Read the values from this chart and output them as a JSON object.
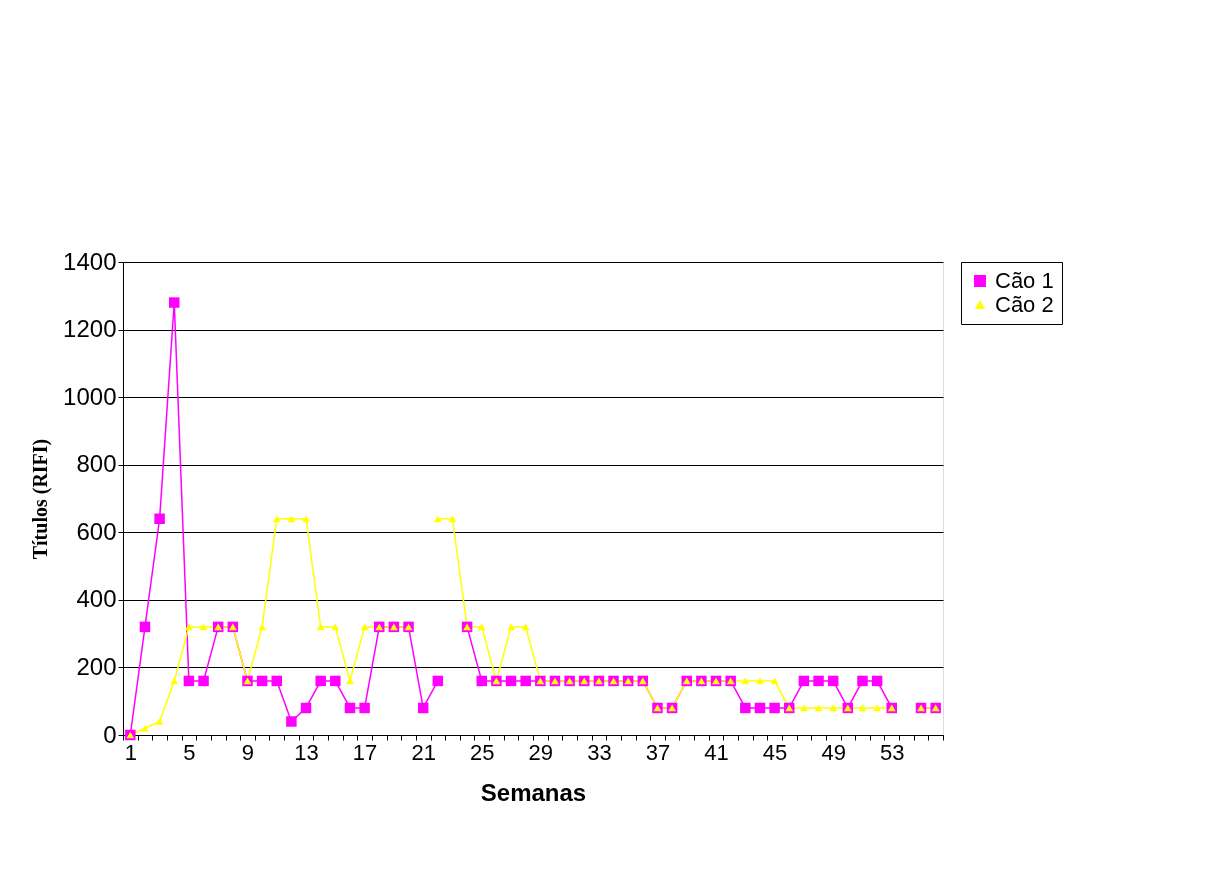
{
  "chart_data": {
    "type": "line",
    "xlabel": "Semanas",
    "ylabel": "Títulos (RIFI)",
    "categories": [
      "1",
      null,
      null,
      null,
      "5",
      null,
      null,
      null,
      "9",
      null,
      null,
      null,
      "13",
      null,
      null,
      null,
      "17",
      null,
      null,
      null,
      "21",
      null,
      null,
      null,
      "25",
      null,
      null,
      null,
      "29",
      null,
      null,
      null,
      "33",
      null,
      null,
      null,
      "37",
      null,
      null,
      null,
      "41",
      null,
      null,
      null,
      "45",
      null,
      null,
      null,
      "49",
      null,
      null,
      null,
      "53",
      null,
      null,
      null
    ],
    "series": [
      {
        "name": "Cão 1",
        "color": "#ff00ff",
        "marker": "square",
        "values": [
          0,
          320,
          640,
          1280,
          160,
          160,
          320,
          320,
          160,
          160,
          160,
          40,
          80,
          160,
          160,
          80,
          80,
          320,
          320,
          320,
          80,
          160,
          null,
          320,
          160,
          160,
          160,
          160,
          160,
          160,
          160,
          160,
          160,
          160,
          160,
          160,
          80,
          80,
          160,
          160,
          160,
          160,
          80,
          80,
          80,
          80,
          160,
          160,
          160,
          80,
          160,
          160,
          80,
          null,
          80,
          80
        ]
      },
      {
        "name": "Cão 2",
        "color": "#ffff00",
        "marker": "triangle",
        "values": [
          0,
          20,
          40,
          160,
          320,
          320,
          320,
          320,
          160,
          320,
          640,
          640,
          640,
          320,
          320,
          160,
          320,
          320,
          320,
          320,
          null,
          640,
          640,
          320,
          320,
          160,
          320,
          320,
          160,
          160,
          160,
          160,
          160,
          160,
          160,
          160,
          80,
          80,
          160,
          160,
          160,
          160,
          160,
          160,
          160,
          80,
          80,
          80,
          80,
          80,
          80,
          80,
          80,
          null,
          80,
          80
        ]
      }
    ],
    "ylim": [
      0,
      1400
    ],
    "yticks": [
      0,
      200,
      400,
      600,
      800,
      1000,
      1200,
      1400
    ],
    "grid": "y",
    "legend": "right"
  }
}
